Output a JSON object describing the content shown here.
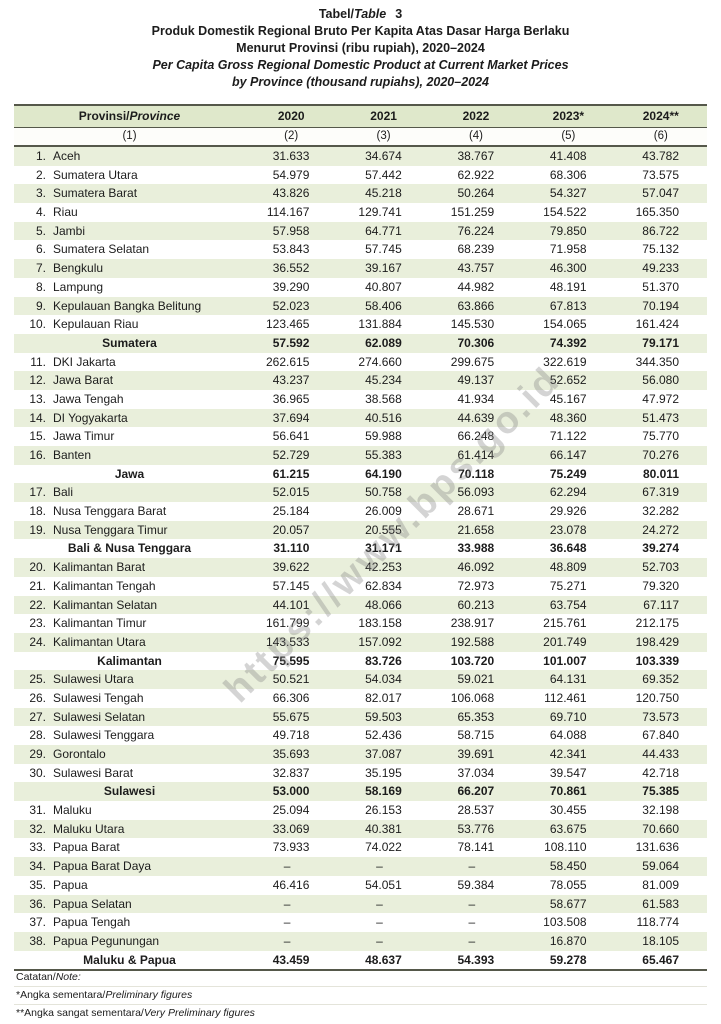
{
  "title": {
    "label_id": "Tabel/",
    "label_en": "Table",
    "number": "3",
    "line_id_1": "Produk Domestik Regional Bruto Per Kapita Atas Dasar Harga Berlaku",
    "line_id_2": "Menurut Provinsi (ribu rupiah), 2020–2024",
    "line_en_1": "Per Capita Gross Regional Domestic Product at Current Market Prices",
    "line_en_2": "by Province (thousand rupiahs), 2020–2024"
  },
  "watermark": "https://www.bps.go.id",
  "colors": {
    "band_green": "#e9efdb",
    "header_green": "#dfe8cb",
    "border_dark": "#55584a",
    "text": "#1c1c1c"
  },
  "table": {
    "header": {
      "province_label_id": "Provinsi/",
      "province_label_en": "Province",
      "years": [
        "2020",
        "2021",
        "2022",
        "2023*",
        "2024**"
      ],
      "column_numbers": [
        "(1)",
        "(2)",
        "(3)",
        "(4)",
        "(5)",
        "(6)"
      ]
    },
    "rows": [
      {
        "no": "1.",
        "name": "Aceh",
        "values": [
          "31.633",
          "34.674",
          "38.767",
          "41.408",
          "43.782"
        ]
      },
      {
        "no": "2.",
        "name": "Sumatera Utara",
        "values": [
          "54.979",
          "57.442",
          "62.922",
          "68.306",
          "73.575"
        ]
      },
      {
        "no": "3.",
        "name": "Sumatera Barat",
        "values": [
          "43.826",
          "45.218",
          "50.264",
          "54.327",
          "57.047"
        ]
      },
      {
        "no": "4.",
        "name": "Riau",
        "values": [
          "114.167",
          "129.741",
          "151.259",
          "154.522",
          "165.350"
        ]
      },
      {
        "no": "5.",
        "name": "Jambi",
        "values": [
          "57.958",
          "64.771",
          "76.224",
          "79.850",
          "86.722"
        ]
      },
      {
        "no": "6.",
        "name": "Sumatera Selatan",
        "values": [
          "53.843",
          "57.745",
          "68.239",
          "71.958",
          "75.132"
        ]
      },
      {
        "no": "7.",
        "name": "Bengkulu",
        "values": [
          "36.552",
          "39.167",
          "43.757",
          "46.300",
          "49.233"
        ]
      },
      {
        "no": "8.",
        "name": "Lampung",
        "values": [
          "39.290",
          "40.807",
          "44.982",
          "48.191",
          "51.370"
        ]
      },
      {
        "no": "9.",
        "name": "Kepulauan Bangka Belitung",
        "values": [
          "52.023",
          "58.406",
          "63.866",
          "67.813",
          "70.194"
        ]
      },
      {
        "no": "10.",
        "name": "Kepulauan Riau",
        "values": [
          "123.465",
          "131.884",
          "145.530",
          "154.065",
          "161.424"
        ]
      },
      {
        "subtotal": true,
        "name": "Sumatera",
        "values": [
          "57.592",
          "62.089",
          "70.306",
          "74.392",
          "79.171"
        ]
      },
      {
        "no": "11.",
        "name": "DKI Jakarta",
        "values": [
          "262.615",
          "274.660",
          "299.675",
          "322.619",
          "344.350"
        ]
      },
      {
        "no": "12.",
        "name": "Jawa Barat",
        "values": [
          "43.237",
          "45.234",
          "49.137",
          "52.652",
          "56.080"
        ]
      },
      {
        "no": "13.",
        "name": "Jawa Tengah",
        "values": [
          "36.965",
          "38.568",
          "41.934",
          "45.167",
          "47.972"
        ]
      },
      {
        "no": "14.",
        "name": "DI Yogyakarta",
        "values": [
          "37.694",
          "40.516",
          "44.639",
          "48.360",
          "51.473"
        ]
      },
      {
        "no": "15.",
        "name": "Jawa Timur",
        "values": [
          "56.641",
          "59.988",
          "66.248",
          "71.122",
          "75.770"
        ]
      },
      {
        "no": "16.",
        "name": "Banten",
        "values": [
          "52.729",
          "55.383",
          "61.414",
          "66.147",
          "70.276"
        ]
      },
      {
        "subtotal": true,
        "name": "Jawa",
        "values": [
          "61.215",
          "64.190",
          "70.118",
          "75.249",
          "80.011"
        ]
      },
      {
        "no": "17.",
        "name": "Bali",
        "values": [
          "52.015",
          "50.758",
          "56.093",
          "62.294",
          "67.319"
        ]
      },
      {
        "no": "18.",
        "name": "Nusa Tenggara Barat",
        "values": [
          "25.184",
          "26.009",
          "28.671",
          "29.926",
          "32.282"
        ]
      },
      {
        "no": "19.",
        "name": "Nusa Tenggara Timur",
        "values": [
          "20.057",
          "20.555",
          "21.658",
          "23.078",
          "24.272"
        ]
      },
      {
        "subtotal": true,
        "name": "Bali & Nusa Tenggara",
        "values": [
          "31.110",
          "31.171",
          "33.988",
          "36.648",
          "39.274"
        ]
      },
      {
        "no": "20.",
        "name": "Kalimantan Barat",
        "values": [
          "39.622",
          "42.253",
          "46.092",
          "48.809",
          "52.703"
        ]
      },
      {
        "no": "21.",
        "name": "Kalimantan Tengah",
        "values": [
          "57.145",
          "62.834",
          "72.973",
          "75.271",
          "79.320"
        ]
      },
      {
        "no": "22.",
        "name": "Kalimantan Selatan",
        "values": [
          "44.101",
          "48.066",
          "60.213",
          "63.754",
          "67.117"
        ]
      },
      {
        "no": "23.",
        "name": "Kalimantan Timur",
        "values": [
          "161.799",
          "183.158",
          "238.917",
          "215.761",
          "212.175"
        ]
      },
      {
        "no": "24.",
        "name": "Kalimantan Utara",
        "values": [
          "143.533",
          "157.092",
          "192.588",
          "201.749",
          "198.429"
        ]
      },
      {
        "subtotal": true,
        "name": "Kalimantan",
        "values": [
          "75.595",
          "83.726",
          "103.720",
          "101.007",
          "103.339"
        ]
      },
      {
        "no": "25.",
        "name": "Sulawesi Utara",
        "values": [
          "50.521",
          "54.034",
          "59.021",
          "64.131",
          "69.352"
        ]
      },
      {
        "no": "26.",
        "name": "Sulawesi Tengah",
        "values": [
          "66.306",
          "82.017",
          "106.068",
          "112.461",
          "120.750"
        ]
      },
      {
        "no": "27.",
        "name": "Sulawesi Selatan",
        "values": [
          "55.675",
          "59.503",
          "65.353",
          "69.710",
          "73.573"
        ]
      },
      {
        "no": "28.",
        "name": "Sulawesi Tenggara",
        "values": [
          "49.718",
          "52.436",
          "58.715",
          "64.088",
          "67.840"
        ]
      },
      {
        "no": "29.",
        "name": "Gorontalo",
        "values": [
          "35.693",
          "37.087",
          "39.691",
          "42.341",
          "44.433"
        ]
      },
      {
        "no": "30.",
        "name": "Sulawesi Barat",
        "values": [
          "32.837",
          "35.195",
          "37.034",
          "39.547",
          "42.718"
        ]
      },
      {
        "subtotal": true,
        "name": "Sulawesi",
        "values": [
          "53.000",
          "58.169",
          "66.207",
          "70.861",
          "75.385"
        ]
      },
      {
        "no": "31.",
        "name": "Maluku",
        "values": [
          "25.094",
          "26.153",
          "28.537",
          "30.455",
          "32.198"
        ]
      },
      {
        "no": "32.",
        "name": "Maluku Utara",
        "values": [
          "33.069",
          "40.381",
          "53.776",
          "63.675",
          "70.660"
        ]
      },
      {
        "no": "33.",
        "name": "Papua Barat",
        "values": [
          "73.933",
          "74.022",
          "78.141",
          "108.110",
          "131.636"
        ]
      },
      {
        "no": "34.",
        "name": "Papua Barat Daya",
        "values": [
          "–",
          "–",
          "–",
          "58.450",
          "59.064"
        ]
      },
      {
        "no": "35.",
        "name": "Papua",
        "values": [
          "46.416",
          "54.051",
          "59.384",
          "78.055",
          "81.009"
        ]
      },
      {
        "no": "36.",
        "name": "Papua Selatan",
        "values": [
          "–",
          "–",
          "–",
          "58.677",
          "61.583"
        ]
      },
      {
        "no": "37.",
        "name": "Papua Tengah",
        "values": [
          "–",
          "–",
          "–",
          "103.508",
          "118.774"
        ]
      },
      {
        "no": "38.",
        "name": "Papua Pegunungan",
        "values": [
          "–",
          "–",
          "–",
          "16.870",
          "18.105"
        ]
      },
      {
        "subtotal": true,
        "name": "Maluku & Papua",
        "values": [
          "43.459",
          "48.637",
          "54.393",
          "59.278",
          "65.467"
        ]
      }
    ]
  },
  "footer": {
    "note_label_id": "Catatan/",
    "note_label_en": "Note:",
    "note1_id": "*Angka sementara/",
    "note1_en": "Preliminary figures",
    "note2_id": "**Angka sangat sementara/",
    "note2_en": "Very Preliminary figures"
  }
}
